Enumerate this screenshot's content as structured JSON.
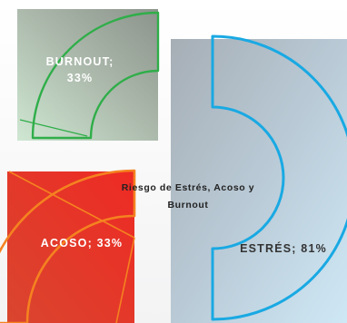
{
  "chart_data": {
    "type": "pie",
    "title_lines": [
      "Riesgo de Estrés, Acoso y",
      "Burnout"
    ],
    "slices": [
      {
        "name": "BURNOUT",
        "value": 33,
        "label_lines": [
          "BURNOUT;",
          "33%"
        ],
        "color": "#2fae49"
      },
      {
        "name": "ESTRÉS",
        "value": 81,
        "label_lines": [
          "ESTRÉS; 81%"
        ],
        "color": "#19a9e3"
      },
      {
        "name": "ACOSO",
        "value": 33,
        "label_lines": [
          "ACOSO; 33%"
        ],
        "color": "#f58220"
      }
    ],
    "unit": "%"
  }
}
